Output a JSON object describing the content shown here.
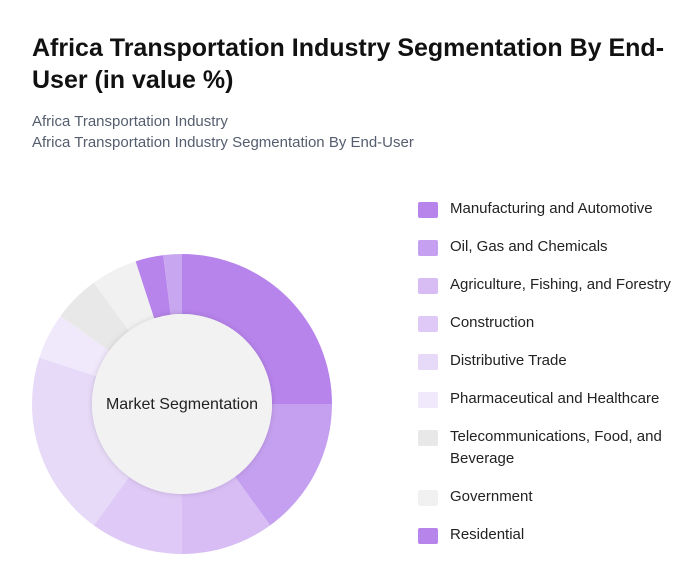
{
  "chart_data": {
    "type": "donut",
    "title": "Africa Transportation Industry Segmentation By End-User (in value %)",
    "subtitles": [
      "Africa Transportation Industry",
      "Africa Transportation Industry Segmentation By End-User"
    ],
    "center_label": "Market Segmentation",
    "categories": [
      "Manufacturing and Automotive",
      "Oil, Gas and Chemicals",
      "Agriculture, Fishing, and Forestry",
      "Construction",
      "Distributive Trade",
      "Pharmaceutical and Healthcare",
      "Telecommunications, Food, and Beverage",
      "Government",
      "Residential",
      null
    ],
    "values": [
      25,
      15,
      10,
      10,
      20,
      5,
      5,
      5,
      3,
      2
    ],
    "colors": [
      "#b784ec",
      "#c5a0f0",
      "#d8bdf5",
      "#dfc9f6",
      "#e7daf8",
      "#f0e8fb",
      "#e8e8e8",
      "#f1f1f1",
      "#b784ec",
      "#c9a6f0"
    ]
  }
}
